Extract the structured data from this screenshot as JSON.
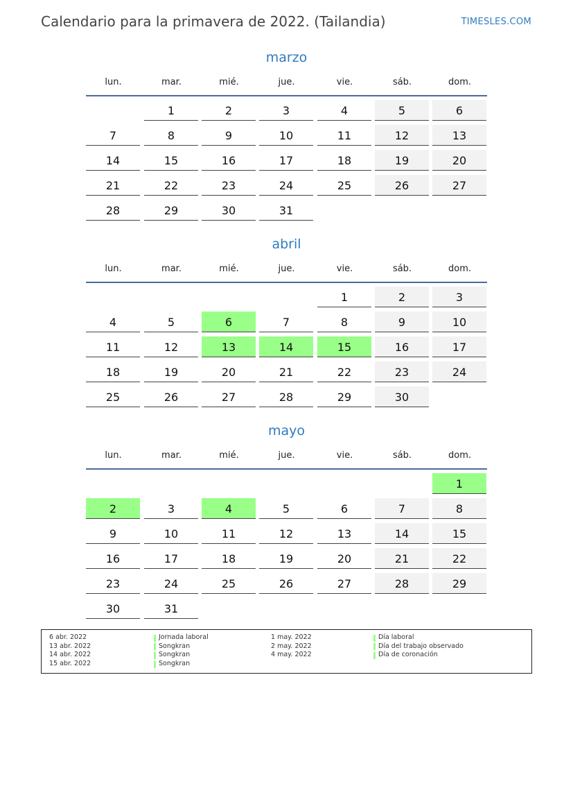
{
  "header": {
    "title": "Calendario para la primavera de 2022. (Tailandia)",
    "brand": "TIMESLES.COM"
  },
  "weekdays": [
    "lun.",
    "mar.",
    "mié.",
    "jue.",
    "vie.",
    "sáb.",
    "dom."
  ],
  "colors": {
    "accent": "#2f7bbf",
    "holiday": "#99ff88",
    "weekend": "#f2f2f2",
    "rule": "#4a6a9c"
  },
  "months": [
    {
      "name": "marzo",
      "weeks": [
        [
          null,
          1,
          2,
          3,
          4,
          5,
          6
        ],
        [
          7,
          8,
          9,
          10,
          11,
          12,
          13
        ],
        [
          14,
          15,
          16,
          17,
          18,
          19,
          20
        ],
        [
          21,
          22,
          23,
          24,
          25,
          26,
          27
        ],
        [
          28,
          29,
          30,
          31,
          null,
          null,
          null
        ]
      ],
      "holidays": []
    },
    {
      "name": "abril",
      "weeks": [
        [
          null,
          null,
          null,
          null,
          1,
          2,
          3
        ],
        [
          4,
          5,
          6,
          7,
          8,
          9,
          10
        ],
        [
          11,
          12,
          13,
          14,
          15,
          16,
          17
        ],
        [
          18,
          19,
          20,
          21,
          22,
          23,
          24
        ],
        [
          25,
          26,
          27,
          28,
          29,
          30,
          null
        ]
      ],
      "holidays": [
        6,
        13,
        14,
        15
      ]
    },
    {
      "name": "mayo",
      "weeks": [
        [
          null,
          null,
          null,
          null,
          null,
          null,
          1
        ],
        [
          2,
          3,
          4,
          5,
          6,
          7,
          8
        ],
        [
          9,
          10,
          11,
          12,
          13,
          14,
          15
        ],
        [
          16,
          17,
          18,
          19,
          20,
          21,
          22
        ],
        [
          23,
          24,
          25,
          26,
          27,
          28,
          29
        ],
        [
          30,
          31,
          null,
          null,
          null,
          null,
          null
        ]
      ],
      "holidays": [
        1,
        2,
        4
      ]
    }
  ],
  "legend": [
    [
      {
        "date": "6 abr. 2022",
        "name": "Jornada laboral"
      },
      {
        "date": "13 abr. 2022",
        "name": "Songkran"
      },
      {
        "date": "14 abr. 2022",
        "name": "Songkran"
      },
      {
        "date": "15 abr. 2022",
        "name": "Songkran"
      }
    ],
    [
      {
        "date": "1 may. 2022",
        "name": "Día laboral"
      },
      {
        "date": "2 may. 2022",
        "name": "Día del trabajo observado"
      },
      {
        "date": "4 may. 2022",
        "name": "Día de coronación"
      }
    ]
  ]
}
